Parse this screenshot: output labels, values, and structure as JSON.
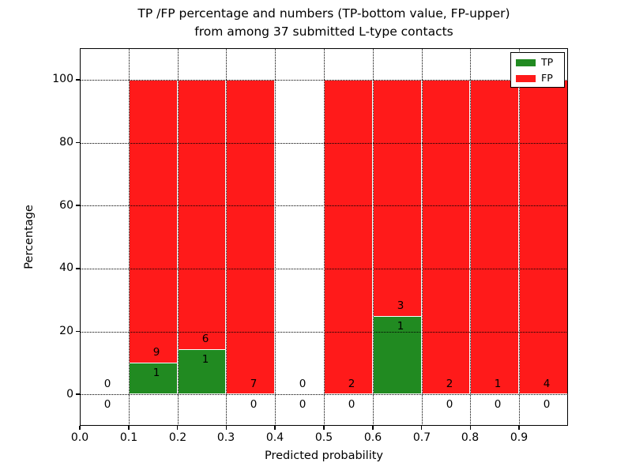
{
  "chart_data": {
    "type": "bar",
    "stacked": true,
    "title_line1": "TP /FP percentage and numbers (TP-bottom value, FP-upper)",
    "title_line2": "from among 37 submitted L-type contacts",
    "xlabel": "Predicted probability",
    "ylabel": "Percentage",
    "xlim": [
      0.0,
      1.0
    ],
    "ylim": [
      -10,
      110
    ],
    "grid": "dotted",
    "x_ticks": [
      {
        "value": 0.0,
        "label": "0.0"
      },
      {
        "value": 0.1,
        "label": "0.1"
      },
      {
        "value": 0.2,
        "label": "0.2"
      },
      {
        "value": 0.3,
        "label": "0.3"
      },
      {
        "value": 0.4,
        "label": "0.4"
      },
      {
        "value": 0.5,
        "label": "0.5"
      },
      {
        "value": 0.6,
        "label": "0.6"
      },
      {
        "value": 0.7,
        "label": "0.7"
      },
      {
        "value": 0.8,
        "label": "0.8"
      },
      {
        "value": 0.9,
        "label": "0.9"
      }
    ],
    "y_ticks": [
      {
        "value": 0,
        "label": "0"
      },
      {
        "value": 20,
        "label": "20"
      },
      {
        "value": 40,
        "label": "40"
      },
      {
        "value": 60,
        "label": "60"
      },
      {
        "value": 80,
        "label": "80"
      },
      {
        "value": 100,
        "label": "100"
      }
    ],
    "legend": {
      "position": "upper right",
      "items": [
        {
          "label": "TP",
          "color": "#218a21"
        },
        {
          "label": "FP",
          "color": "#ff1a1a"
        }
      ]
    },
    "series_note": "Each bin bar totals 100%; TP (green) bottom segment, FP (red) upper segment. Upper number = FP count, lower number = TP count.",
    "bins": [
      {
        "range": [
          0.0,
          0.1
        ],
        "tp_count": 0,
        "fp_count": 0,
        "tp_pct": 0,
        "fp_pct": 0,
        "has_bar": false
      },
      {
        "range": [
          0.1,
          0.2
        ],
        "tp_count": 1,
        "fp_count": 9,
        "tp_pct": 10.0,
        "fp_pct": 90.0,
        "has_bar": true
      },
      {
        "range": [
          0.2,
          0.3
        ],
        "tp_count": 1,
        "fp_count": 6,
        "tp_pct": 14.2857,
        "fp_pct": 85.7143,
        "has_bar": true
      },
      {
        "range": [
          0.3,
          0.4
        ],
        "tp_count": 0,
        "fp_count": 7,
        "tp_pct": 0,
        "fp_pct": 100,
        "has_bar": true
      },
      {
        "range": [
          0.4,
          0.5
        ],
        "tp_count": 0,
        "fp_count": 0,
        "tp_pct": 0,
        "fp_pct": 0,
        "has_bar": false
      },
      {
        "range": [
          0.5,
          0.6
        ],
        "tp_count": 0,
        "fp_count": 2,
        "tp_pct": 0,
        "fp_pct": 100,
        "has_bar": true
      },
      {
        "range": [
          0.6,
          0.7
        ],
        "tp_count": 1,
        "fp_count": 3,
        "tp_pct": 25.0,
        "fp_pct": 75.0,
        "has_bar": true
      },
      {
        "range": [
          0.7,
          0.8
        ],
        "tp_count": 0,
        "fp_count": 2,
        "tp_pct": 0,
        "fp_pct": 100,
        "has_bar": true
      },
      {
        "range": [
          0.8,
          0.9
        ],
        "tp_count": 0,
        "fp_count": 1,
        "tp_pct": 0,
        "fp_pct": 100,
        "has_bar": true
      },
      {
        "range": [
          0.9,
          1.0
        ],
        "tp_count": 0,
        "fp_count": 4,
        "tp_pct": 0,
        "fp_pct": 100,
        "has_bar": true
      }
    ],
    "colors": {
      "tp": "#218a21",
      "fp": "#ff1a1a",
      "bar_edge": "#ffffff",
      "grid": "#000000",
      "text": "#000000",
      "background": "#ffffff"
    }
  }
}
